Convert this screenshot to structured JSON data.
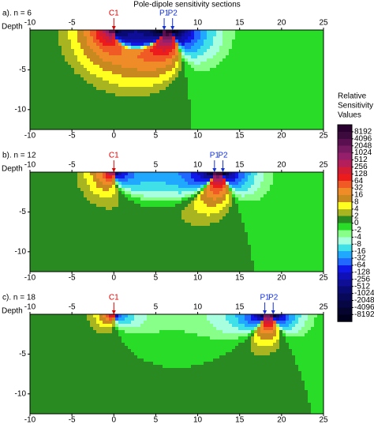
{
  "title": "Pole-dipole sensitivity sections",
  "colorbar": {
    "title": [
      "Relative",
      "Sensitivity",
      "Values"
    ],
    "levels": [
      8192,
      4096,
      2048,
      1024,
      512,
      256,
      128,
      64,
      32,
      16,
      8,
      4,
      2,
      0,
      -2,
      -4,
      -8,
      -16,
      -32,
      -64,
      -128,
      -256,
      -512,
      -1024,
      -2048,
      -4096,
      -8192
    ],
    "colors": [
      "#2a0030",
      "#3d0a3d",
      "#5a1050",
      "#781a62",
      "#961f6c",
      "#b41e5a",
      "#d41c34",
      "#ec1c1c",
      "#f05a24",
      "#f08c28",
      "#c88a1e",
      "#ffff20",
      "#a8b420",
      "#2a8a22",
      "#28dc28",
      "#88ff88",
      "#a8ffe0",
      "#40e0e8",
      "#20a8ff",
      "#2068ff",
      "#1018e8",
      "#1010b8",
      "#0e0e96",
      "#0a0a74",
      "#08085a",
      "#060644",
      "#04042e",
      "#00001c"
    ]
  },
  "chart_data": [
    {
      "type": "contour",
      "label": "a). n = 6",
      "y_label": "Depth",
      "xlim": [
        -10,
        25
      ],
      "ylim": [
        -12.5,
        0
      ],
      "xticks": [
        -10,
        -5,
        0,
        5,
        10,
        15,
        20,
        25
      ],
      "yticks": [
        -5,
        -10
      ],
      "electrodes": [
        {
          "label": "C1",
          "x": 0,
          "color": "#e00000"
        },
        {
          "label": "P1",
          "x": 6,
          "color": "#1030e0"
        },
        {
          "label": "P2",
          "x": 7,
          "color": "#1030e0"
        }
      ]
    },
    {
      "type": "contour",
      "label": "b). n = 12",
      "y_label": "Depth",
      "xlim": [
        -10,
        25
      ],
      "ylim": [
        -12.5,
        0
      ],
      "xticks": [
        -10,
        -5,
        0,
        5,
        10,
        15,
        20,
        25
      ],
      "yticks": [
        -5,
        -10
      ],
      "electrodes": [
        {
          "label": "C1",
          "x": 0,
          "color": "#e00000"
        },
        {
          "label": "P1",
          "x": 12,
          "color": "#1030e0"
        },
        {
          "label": "P2",
          "x": 13,
          "color": "#1030e0"
        }
      ]
    },
    {
      "type": "contour",
      "label": "c). n = 18",
      "y_label": "Depth",
      "xlim": [
        -10,
        25
      ],
      "ylim": [
        -12.5,
        0
      ],
      "xticks": [
        -10,
        -5,
        0,
        5,
        10,
        15,
        20,
        25
      ],
      "yticks": [
        -5,
        -10
      ],
      "electrodes": [
        {
          "label": "C1",
          "x": 0,
          "color": "#e00000"
        },
        {
          "label": "P1",
          "x": 18,
          "color": "#1030e0"
        },
        {
          "label": "P2",
          "x": 19,
          "color": "#1030e0"
        }
      ]
    }
  ]
}
